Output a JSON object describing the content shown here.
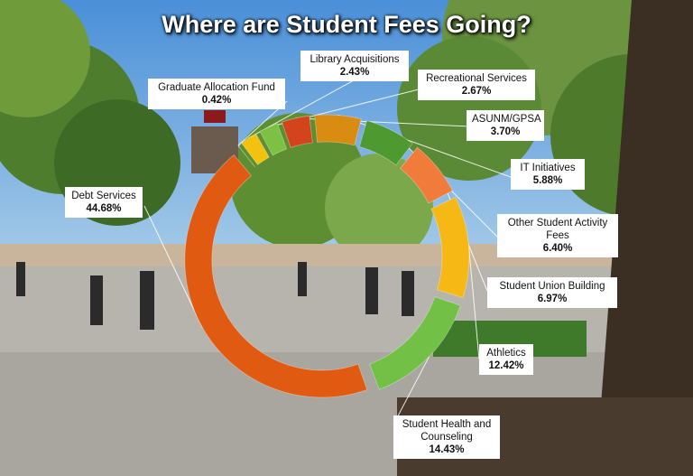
{
  "title": "Where are Student Fees Going?",
  "chart_data": {
    "type": "pie",
    "title": "Where are Student Fees Going?",
    "slices": [
      {
        "name": "Debt Services",
        "value": 44.68,
        "label": "44.68%",
        "color": "#e05a12"
      },
      {
        "name": "Graduate Allocation Fund",
        "value": 0.42,
        "label": "0.42%",
        "color": "#e38a1e"
      },
      {
        "name": "Library Acquisitions",
        "value": 2.43,
        "label": "2.43%",
        "color": "#f2c20f"
      },
      {
        "name": "Recreational Services",
        "value": 2.67,
        "label": "2.67%",
        "color": "#7cc142"
      },
      {
        "name": "ASUNM/GPSA",
        "value": 3.7,
        "label": "3.70%",
        "color": "#d4441c"
      },
      {
        "name": "IT Initiatives",
        "value": 5.88,
        "label": "5.88%",
        "color": "#d98b12"
      },
      {
        "name": "Other Student Activity Fees",
        "value": 6.4,
        "label": "6.40%",
        "color": "#4f9a30"
      },
      {
        "name": "Student Union Building",
        "value": 6.97,
        "label": "6.97%",
        "color": "#f07b3a"
      },
      {
        "name": "Athletics",
        "value": 12.42,
        "label": "12.42%",
        "color": "#f6b814"
      },
      {
        "name": "Student Health and Counseling",
        "value": 14.43,
        "label": "14.43%",
        "color": "#72c045"
      }
    ]
  }
}
